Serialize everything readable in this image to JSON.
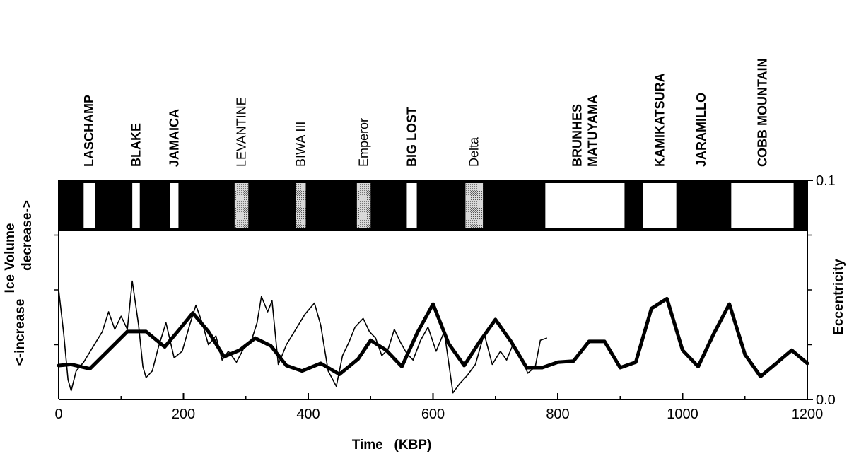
{
  "chart_data": {
    "type": "line",
    "xlabel": "Time   (KBP)",
    "ylabel_left": {
      "main": "Ice Volume",
      "top": "decrease->",
      "bottom": "<-increase"
    },
    "ylabel_right": "Eccentricity",
    "xlim": [
      0,
      1200
    ],
    "ylim_right": [
      0.0,
      0.1
    ],
    "x_ticks": [
      "0",
      "200",
      "400",
      "600",
      "800",
      "1000",
      "1200"
    ],
    "x_tick_values": [
      0,
      200,
      400,
      600,
      800,
      1000,
      1200
    ],
    "y_right_ticks": [
      "0.0",
      "0.1"
    ],
    "y_right_tick_values": [
      0.0,
      0.1
    ],
    "polarity_events": [
      {
        "name": "LASCHAMP",
        "start": 40,
        "end": 58,
        "fill": "white",
        "bold": true
      },
      {
        "name": "BLAKE",
        "start": 118,
        "end": 130,
        "fill": "white",
        "bold": true
      },
      {
        "name": "JAMAICA",
        "start": 178,
        "end": 192,
        "fill": "white",
        "bold": true
      },
      {
        "name": "LEVANTINE",
        "start": 282,
        "end": 304,
        "fill": "stippled",
        "bold": false
      },
      {
        "name": "BIWA III",
        "start": 380,
        "end": 396,
        "fill": "stippled",
        "bold": false
      },
      {
        "name": "Emperor",
        "start": 478,
        "end": 500,
        "fill": "stippled",
        "bold": false
      },
      {
        "name": "BIG LOST",
        "start": 558,
        "end": 574,
        "fill": "white",
        "bold": true
      },
      {
        "name": "Delta",
        "start": 652,
        "end": 680,
        "fill": "stippled",
        "bold": false
      },
      {
        "name": "BRUNHES\nMATUYAMA",
        "start": 780,
        "end": 907,
        "fill": "white",
        "bold": true
      },
      {
        "name": "KAMIKATSURA",
        "start": 937,
        "end": 990,
        "fill": "white",
        "bold": true
      },
      {
        "name": "JARAMILLO",
        "start": 990,
        "end": 1070,
        "fill": "black",
        "bold": true
      },
      {
        "name": "COBB MOUNTAIN",
        "start": 1078,
        "end": 1178,
        "fill": "white",
        "bold": true
      }
    ],
    "series": [
      {
        "style": "thick",
        "x": [
          0,
          20,
          50,
          80,
          110,
          140,
          170,
          195,
          215,
          240,
          265,
          290,
          315,
          340,
          365,
          390,
          420,
          450,
          480,
          500,
          525,
          550,
          575,
          600,
          625,
          650,
          675,
          700,
          725,
          750,
          775,
          800,
          825,
          850,
          875,
          900,
          925,
          950,
          975,
          1000,
          1025,
          1050,
          1075,
          1100,
          1125,
          1150,
          1175,
          1200
        ],
        "values": [
          0.0155,
          0.016,
          0.014,
          0.0225,
          0.031,
          0.031,
          0.024,
          0.0325,
          0.0395,
          0.031,
          0.0195,
          0.0225,
          0.028,
          0.0245,
          0.0155,
          0.013,
          0.0165,
          0.0115,
          0.0185,
          0.027,
          0.0225,
          0.015,
          0.0305,
          0.0435,
          0.0255,
          0.0155,
          0.0265,
          0.0365,
          0.0265,
          0.0145,
          0.0145,
          0.017,
          0.0175,
          0.0265,
          0.0265,
          0.0145,
          0.017,
          0.0415,
          0.046,
          0.0225,
          0.015,
          0.03,
          0.0435,
          0.0205,
          0.0105,
          0.0165,
          0.0225,
          0.0165
        ]
      },
      {
        "style": "thin",
        "x": [
          0,
          8,
          15,
          20,
          28,
          40,
          55,
          70,
          80,
          90,
          100,
          110,
          118,
          128,
          135,
          140,
          150,
          160,
          172,
          185,
          198,
          210,
          220,
          230,
          240,
          252,
          262,
          272,
          285,
          296,
          308,
          318,
          325,
          335,
          342,
          352,
          358,
          365,
          380,
          395,
          410,
          420,
          432,
          445,
          455,
          465,
          475,
          488,
          498,
          508,
          518,
          528,
          538,
          548,
          558,
          568,
          580,
          592,
          605,
          618,
          632,
          642,
          655,
          668,
          682,
          695,
          708,
          718,
          728,
          740,
          752,
          764,
          772,
          782
        ],
        "values": [
          0.05,
          0.03,
          0.009,
          0.004,
          0.013,
          0.017,
          0.024,
          0.031,
          0.04,
          0.032,
          0.038,
          0.032,
          0.054,
          0.034,
          0.015,
          0.01,
          0.013,
          0.024,
          0.035,
          0.019,
          0.022,
          0.034,
          0.043,
          0.035,
          0.025,
          0.029,
          0.018,
          0.022,
          0.017,
          0.023,
          0.026,
          0.035,
          0.047,
          0.04,
          0.045,
          0.016,
          0.02,
          0.025,
          0.032,
          0.039,
          0.044,
          0.034,
          0.013,
          0.006,
          0.02,
          0.026,
          0.033,
          0.037,
          0.031,
          0.028,
          0.02,
          0.023,
          0.032,
          0.026,
          0.021,
          0.018,
          0.027,
          0.033,
          0.022,
          0.031,
          0.003,
          0.007,
          0.011,
          0.016,
          0.03,
          0.016,
          0.022,
          0.018,
          0.025,
          0.02,
          0.012,
          0.015,
          0.027,
          0.028
        ]
      }
    ]
  }
}
